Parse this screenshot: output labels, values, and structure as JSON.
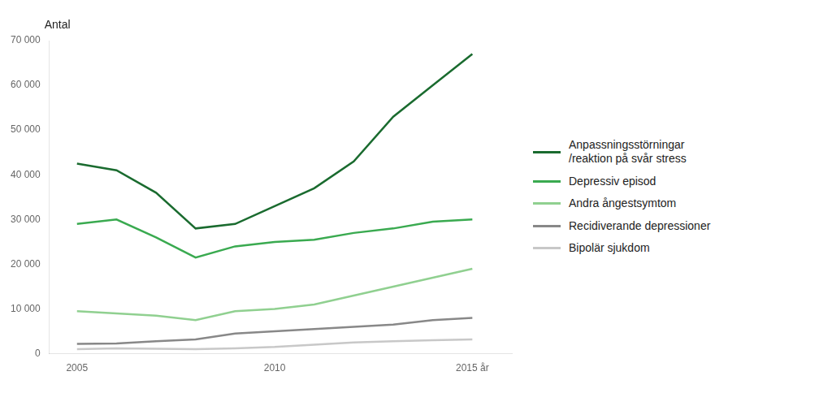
{
  "chart_data": {
    "type": "line",
    "ylabel": "Antal",
    "x": [
      2005,
      2006,
      2007,
      2008,
      2009,
      2010,
      2011,
      2012,
      2013,
      2014,
      2015
    ],
    "series": [
      {
        "name": "Anpassningsstörningar\n/reaktion på svår stress",
        "color": "#1a6b2f",
        "values": [
          42500,
          41000,
          36000,
          28000,
          29000,
          33000,
          37000,
          43000,
          53000,
          60000,
          67000
        ]
      },
      {
        "name": "Depressiv episod",
        "color": "#3aaa50",
        "values": [
          29000,
          30000,
          26000,
          21500,
          24000,
          25000,
          25500,
          27000,
          28000,
          29500,
          30000
        ]
      },
      {
        "name": "Andra ångestsymtom",
        "color": "#90d090",
        "values": [
          9500,
          9000,
          8500,
          7500,
          9500,
          10000,
          11000,
          13000,
          15000,
          17000,
          19000
        ]
      },
      {
        "name": "Recidiverande depressioner",
        "color": "#888888",
        "values": [
          2200,
          2300,
          2800,
          3200,
          4500,
          5000,
          5500,
          6000,
          6500,
          7500,
          8000
        ]
      },
      {
        "name": "Bipolär sjukdom",
        "color": "#c8c8c8",
        "values": [
          1000,
          1200,
          1100,
          1000,
          1200,
          1500,
          2000,
          2500,
          2800,
          3000,
          3200
        ]
      }
    ],
    "xlim": [
      2004.3,
      2016.0
    ],
    "xticks": [
      2005,
      2010,
      {
        "value": 2015,
        "label": "2015 år"
      }
    ],
    "ylim": [
      0,
      70000
    ],
    "yticks": [
      0,
      {
        "value": 10000,
        "label": "10 000"
      },
      {
        "value": 20000,
        "label": "20 000"
      },
      {
        "value": 30000,
        "label": "30 000"
      },
      {
        "value": 40000,
        "label": "40 000"
      },
      {
        "value": 50000,
        "label": "50 000"
      },
      {
        "value": 60000,
        "label": "60 000"
      },
      {
        "value": 70000,
        "label": "70 000"
      }
    ],
    "grid": false,
    "legend": "right"
  }
}
